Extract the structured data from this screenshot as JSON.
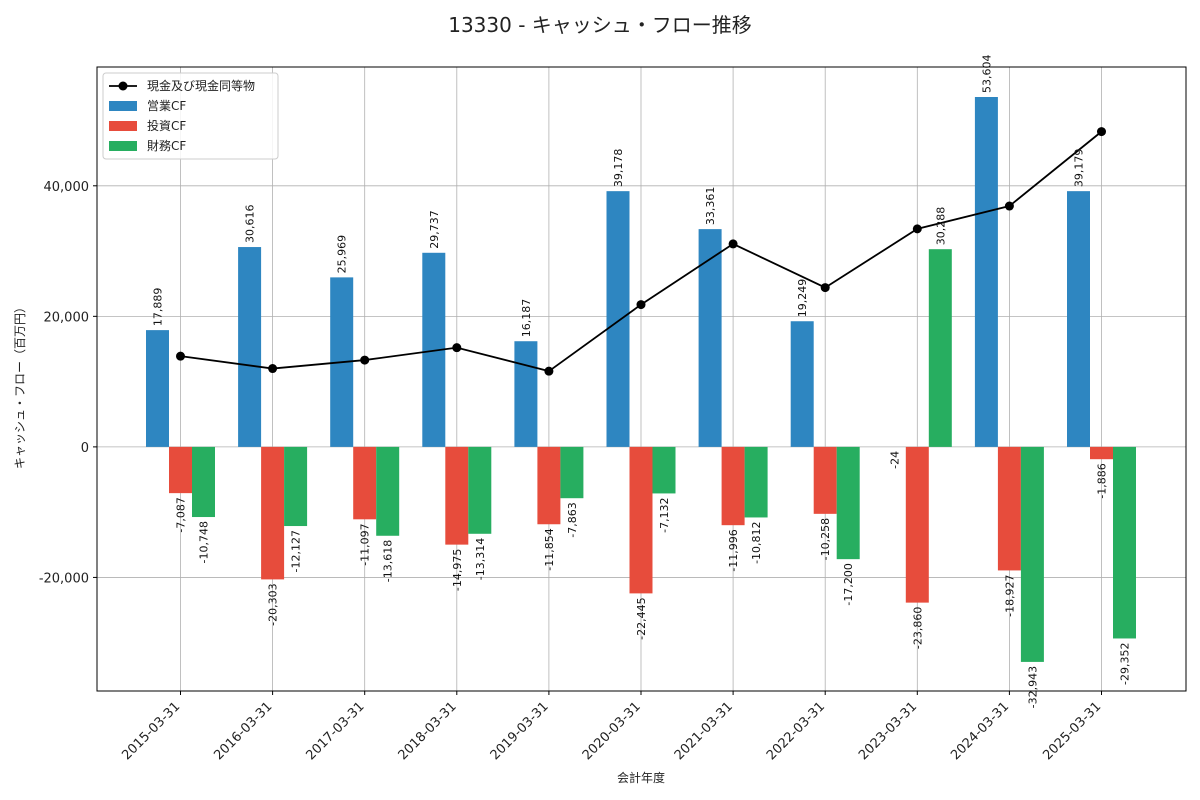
{
  "chart_data": {
    "type": "bar",
    "title": "13330 - キャッシュ・フロー推移",
    "xlabel": "会計年度",
    "ylabel": "キャッシュ・フロー（百万円）",
    "categories": [
      "2015-03-31",
      "2016-03-31",
      "2017-03-31",
      "2018-03-31",
      "2019-03-31",
      "2020-03-31",
      "2021-03-31",
      "2022-03-31",
      "2023-03-31",
      "2024-03-31",
      "2025-03-31"
    ],
    "ylim": [
      -37400,
      58200
    ],
    "yticks": [
      -20000,
      0,
      20000,
      40000
    ],
    "ytick_labels": [
      "-20,000",
      "0",
      "20,000",
      "40,000"
    ],
    "grid": true,
    "legend_position": "top-left",
    "series": [
      {
        "name": "営業CF",
        "kind": "bar",
        "color": "#2e86c1",
        "values": [
          17889,
          30616,
          25969,
          29737,
          16187,
          39178,
          33361,
          19249,
          0,
          53604,
          39179
        ],
        "labels": [
          "17,889",
          "30,616",
          "25,969",
          "29,737",
          "16,187",
          "39,178",
          "33,361",
          "19,249",
          "",
          "53,604",
          "39,179"
        ]
      },
      {
        "name": "投資CF",
        "kind": "bar",
        "color": "#e74c3c",
        "values": [
          -7087,
          -20303,
          -11097,
          -14975,
          -11854,
          -22445,
          -11996,
          -10258,
          -23860,
          -18927,
          -1886
        ],
        "labels": [
          "-7,087",
          "-20,303",
          "-11,097",
          "-14,975",
          "-11,854",
          "-22,445",
          "-11,996",
          "-10,258",
          "-23,860",
          "-18,927",
          "-1,886"
        ]
      },
      {
        "name": "財務CF",
        "kind": "bar",
        "color": "#27ae60",
        "values": [
          -10748,
          -12127,
          -13618,
          -13314,
          -7863,
          -7132,
          -10812,
          -17200,
          30288,
          -32943,
          -29352
        ],
        "labels": [
          "-10,748",
          "-12,127",
          "-13,618",
          "-13,314",
          "-7,863",
          "-7,132",
          "-10,812",
          "-17,200",
          "30,288",
          "-32,943",
          "-29,352"
        ]
      },
      {
        "name": "現金及び現金同等物",
        "kind": "line",
        "color": "#000000",
        "values": [
          13900,
          12000,
          13300,
          15200,
          11600,
          21800,
          31100,
          24400,
          33400,
          36900,
          48300
        ]
      }
    ],
    "annotations": [
      {
        "text": "-24",
        "category_index": 8
      }
    ]
  }
}
